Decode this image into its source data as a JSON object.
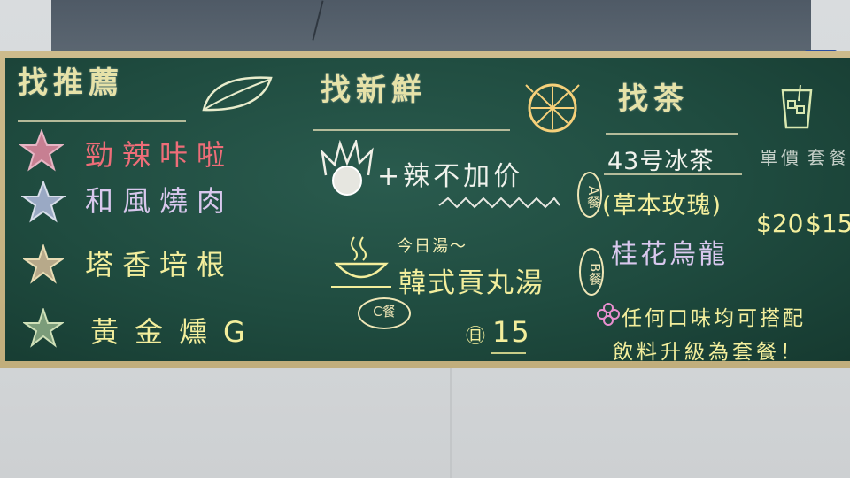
{
  "headers": {
    "recommend": "找推薦",
    "fresh": "找新鮮",
    "tea": "找茶"
  },
  "left_menu": [
    {
      "text": "勁辣咔啦",
      "color": "#ee6d78"
    },
    {
      "text": "和風燒肉",
      "color": "#d9c8ee"
    },
    {
      "text": "塔香培根",
      "color": "#f3ee9c"
    },
    {
      "text": "黃金燻G",
      "color": "#f3ee9c"
    }
  ],
  "middle": {
    "spicy": "+辣不加价",
    "set_a": "A餐",
    "soup_label": "今日湯～",
    "soup": "韓式貢丸湯",
    "set_b": "B餐",
    "set_c": "C餐",
    "price_mark": "㊐",
    "price": "15"
  },
  "tea": {
    "iced": "43号冰茶",
    "herbal": "(草本玫瑰)",
    "oolong": "桂花烏龍",
    "col_single": "單價",
    "col_set": "套餐",
    "price_single": "$20",
    "price_set": "$15",
    "note_line1": "任何口味均可搭配",
    "note_line2": "飲料升級為套餐！"
  }
}
